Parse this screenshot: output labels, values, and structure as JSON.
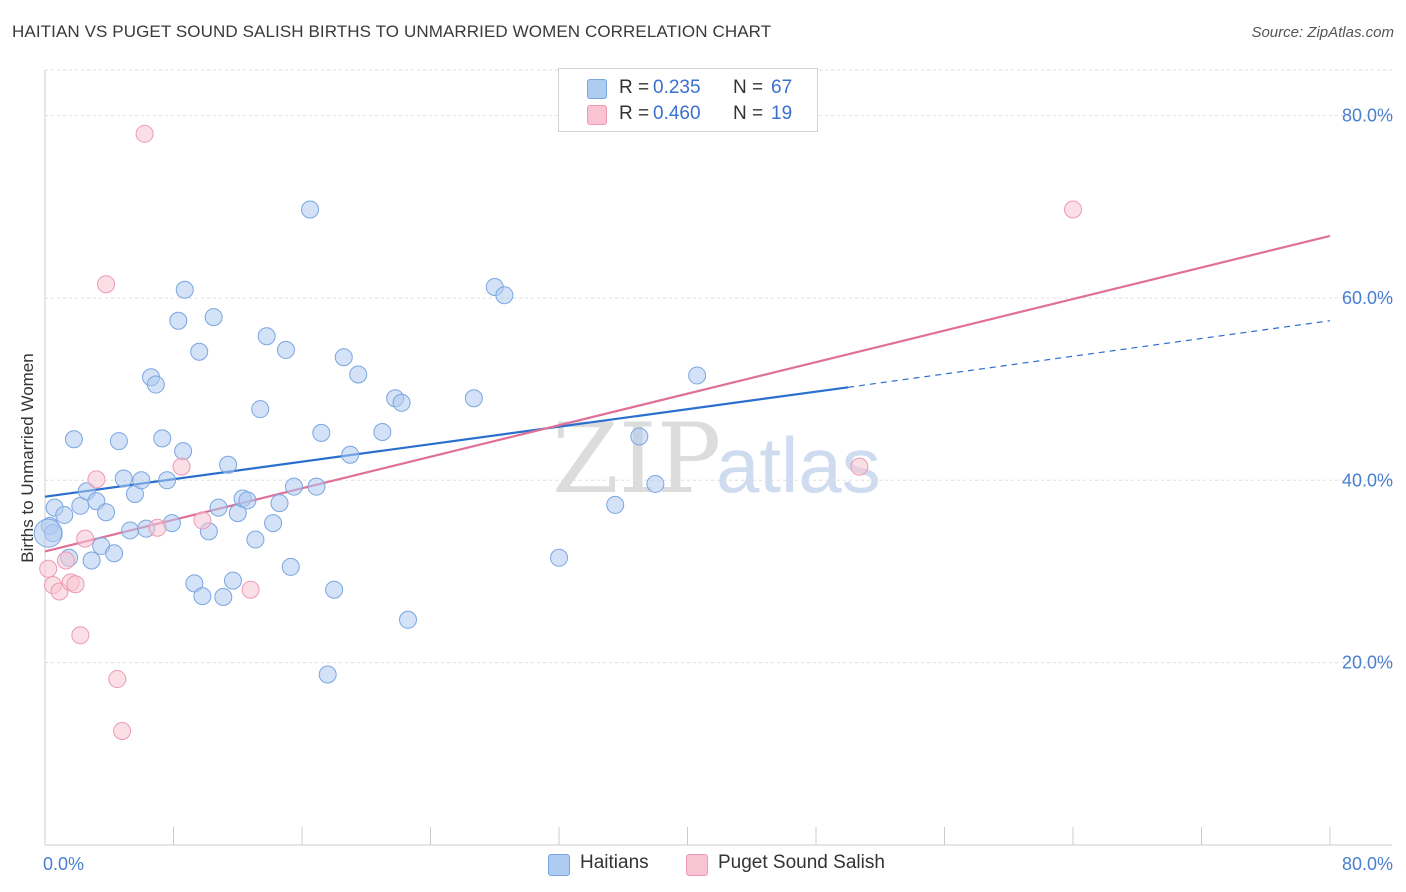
{
  "header": {
    "title": "HAITIAN VS PUGET SOUND SALISH BIRTHS TO UNMARRIED WOMEN CORRELATION CHART",
    "source": "Source: ZipAtlas.com"
  },
  "watermark": {
    "zip": "ZIP",
    "atlas": "atlas"
  },
  "legend": {
    "rows": [
      {
        "r_label": "R =",
        "r_value": "0.235",
        "n_label": "N =",
        "n_value": "67",
        "color": "#aecbf0",
        "border": "#7aa6e0"
      },
      {
        "r_label": "R =",
        "r_value": "0.460",
        "n_label": "N =",
        "n_value": "19",
        "color": "#f8c4d4",
        "border": "#ee9ab4"
      }
    ]
  },
  "bottom_legend": [
    {
      "label": "Haitians",
      "color": "#aecbf0",
      "border": "#7aa6e0"
    },
    {
      "label": "Puget Sound Salish",
      "color": "#f8c4d4",
      "border": "#ee9ab4"
    }
  ],
  "chart_data": {
    "type": "scatter",
    "title": "HAITIAN VS PUGET SOUND SALISH BIRTHS TO UNMARRIED WOMEN CORRELATION CHART",
    "xlabel": "",
    "ylabel": "Births to Unmarried Women",
    "xlim": [
      0,
      80
    ],
    "ylim": [
      0,
      85
    ],
    "x_tick_labels": [
      "0.0%",
      "80.0%"
    ],
    "y_ticks": [
      20,
      40,
      60,
      80
    ],
    "y_tick_labels": [
      "20.0%",
      "40.0%",
      "60.0%",
      "80.0%"
    ],
    "grid": true,
    "legend_position": "top-center",
    "series": [
      {
        "name": "Haitians",
        "color": "#aecbf0",
        "stroke": "#7aa6e0",
        "line_color": "#2b6fce",
        "trend": {
          "x0": 0,
          "y0": 38.2,
          "x1": 50,
          "y1": 50.2,
          "dashed_to_x": 80,
          "dashed_to_y": 57.5
        },
        "points": [
          [
            0.3,
            35.0
          ],
          [
            0.5,
            34.2
          ],
          [
            0.6,
            37.0
          ],
          [
            1.2,
            36.2
          ],
          [
            1.5,
            31.5
          ],
          [
            1.8,
            44.5
          ],
          [
            2.2,
            37.2
          ],
          [
            2.6,
            38.8
          ],
          [
            2.9,
            31.2
          ],
          [
            3.2,
            37.7
          ],
          [
            3.5,
            32.8
          ],
          [
            3.8,
            36.5
          ],
          [
            4.3,
            32.0
          ],
          [
            4.6,
            44.3
          ],
          [
            4.9,
            40.2
          ],
          [
            5.3,
            34.5
          ],
          [
            5.6,
            38.5
          ],
          [
            6.0,
            40.0
          ],
          [
            6.3,
            34.7
          ],
          [
            6.6,
            51.3
          ],
          [
            6.9,
            50.5
          ],
          [
            7.3,
            44.6
          ],
          [
            7.6,
            40.0
          ],
          [
            7.9,
            35.3
          ],
          [
            8.3,
            57.5
          ],
          [
            8.6,
            43.2
          ],
          [
            8.7,
            60.9
          ],
          [
            9.3,
            28.7
          ],
          [
            9.6,
            54.1
          ],
          [
            9.8,
            27.3
          ],
          [
            10.2,
            34.4
          ],
          [
            10.5,
            57.9
          ],
          [
            10.8,
            37.0
          ],
          [
            11.1,
            27.2
          ],
          [
            11.4,
            41.7
          ],
          [
            11.7,
            29.0
          ],
          [
            12.0,
            36.4
          ],
          [
            12.3,
            38.0
          ],
          [
            12.6,
            37.8
          ],
          [
            13.1,
            33.5
          ],
          [
            13.4,
            47.8
          ],
          [
            13.8,
            55.8
          ],
          [
            14.2,
            35.3
          ],
          [
            14.6,
            37.5
          ],
          [
            15.0,
            54.3
          ],
          [
            15.3,
            30.5
          ],
          [
            15.5,
            39.3
          ],
          [
            16.5,
            69.7
          ],
          [
            16.9,
            39.3
          ],
          [
            17.2,
            45.2
          ],
          [
            17.6,
            18.7
          ],
          [
            18.0,
            28.0
          ],
          [
            18.6,
            53.5
          ],
          [
            19.0,
            42.8
          ],
          [
            19.5,
            51.6
          ],
          [
            21.0,
            45.3
          ],
          [
            21.8,
            49.0
          ],
          [
            22.2,
            48.5
          ],
          [
            22.6,
            24.7
          ],
          [
            26.7,
            49.0
          ],
          [
            28.0,
            61.2
          ],
          [
            28.6,
            60.3
          ],
          [
            32.0,
            31.5
          ],
          [
            35.5,
            37.3
          ],
          [
            37.0,
            44.8
          ],
          [
            38.0,
            39.6
          ],
          [
            40.6,
            51.5
          ]
        ]
      },
      {
        "name": "Puget Sound Salish",
        "color": "#f8c4d4",
        "stroke": "#ee9ab4",
        "line_color": "#e07098",
        "trend": {
          "x0": 0,
          "y0": 32.2,
          "x1": 80,
          "y1": 66.8
        },
        "points": [
          [
            0.2,
            30.3
          ],
          [
            0.5,
            28.5
          ],
          [
            0.9,
            27.8
          ],
          [
            1.3,
            31.2
          ],
          [
            1.6,
            28.8
          ],
          [
            1.9,
            28.6
          ],
          [
            2.2,
            23.0
          ],
          [
            2.5,
            33.6
          ],
          [
            3.2,
            40.1
          ],
          [
            3.8,
            61.5
          ],
          [
            4.5,
            18.2
          ],
          [
            4.8,
            12.5
          ],
          [
            6.2,
            78.0
          ],
          [
            7.0,
            34.8
          ],
          [
            8.5,
            41.5
          ],
          [
            9.8,
            35.6
          ],
          [
            12.8,
            28.0
          ],
          [
            64.0,
            69.7
          ],
          [
            50.7,
            41.5
          ]
        ]
      }
    ]
  }
}
